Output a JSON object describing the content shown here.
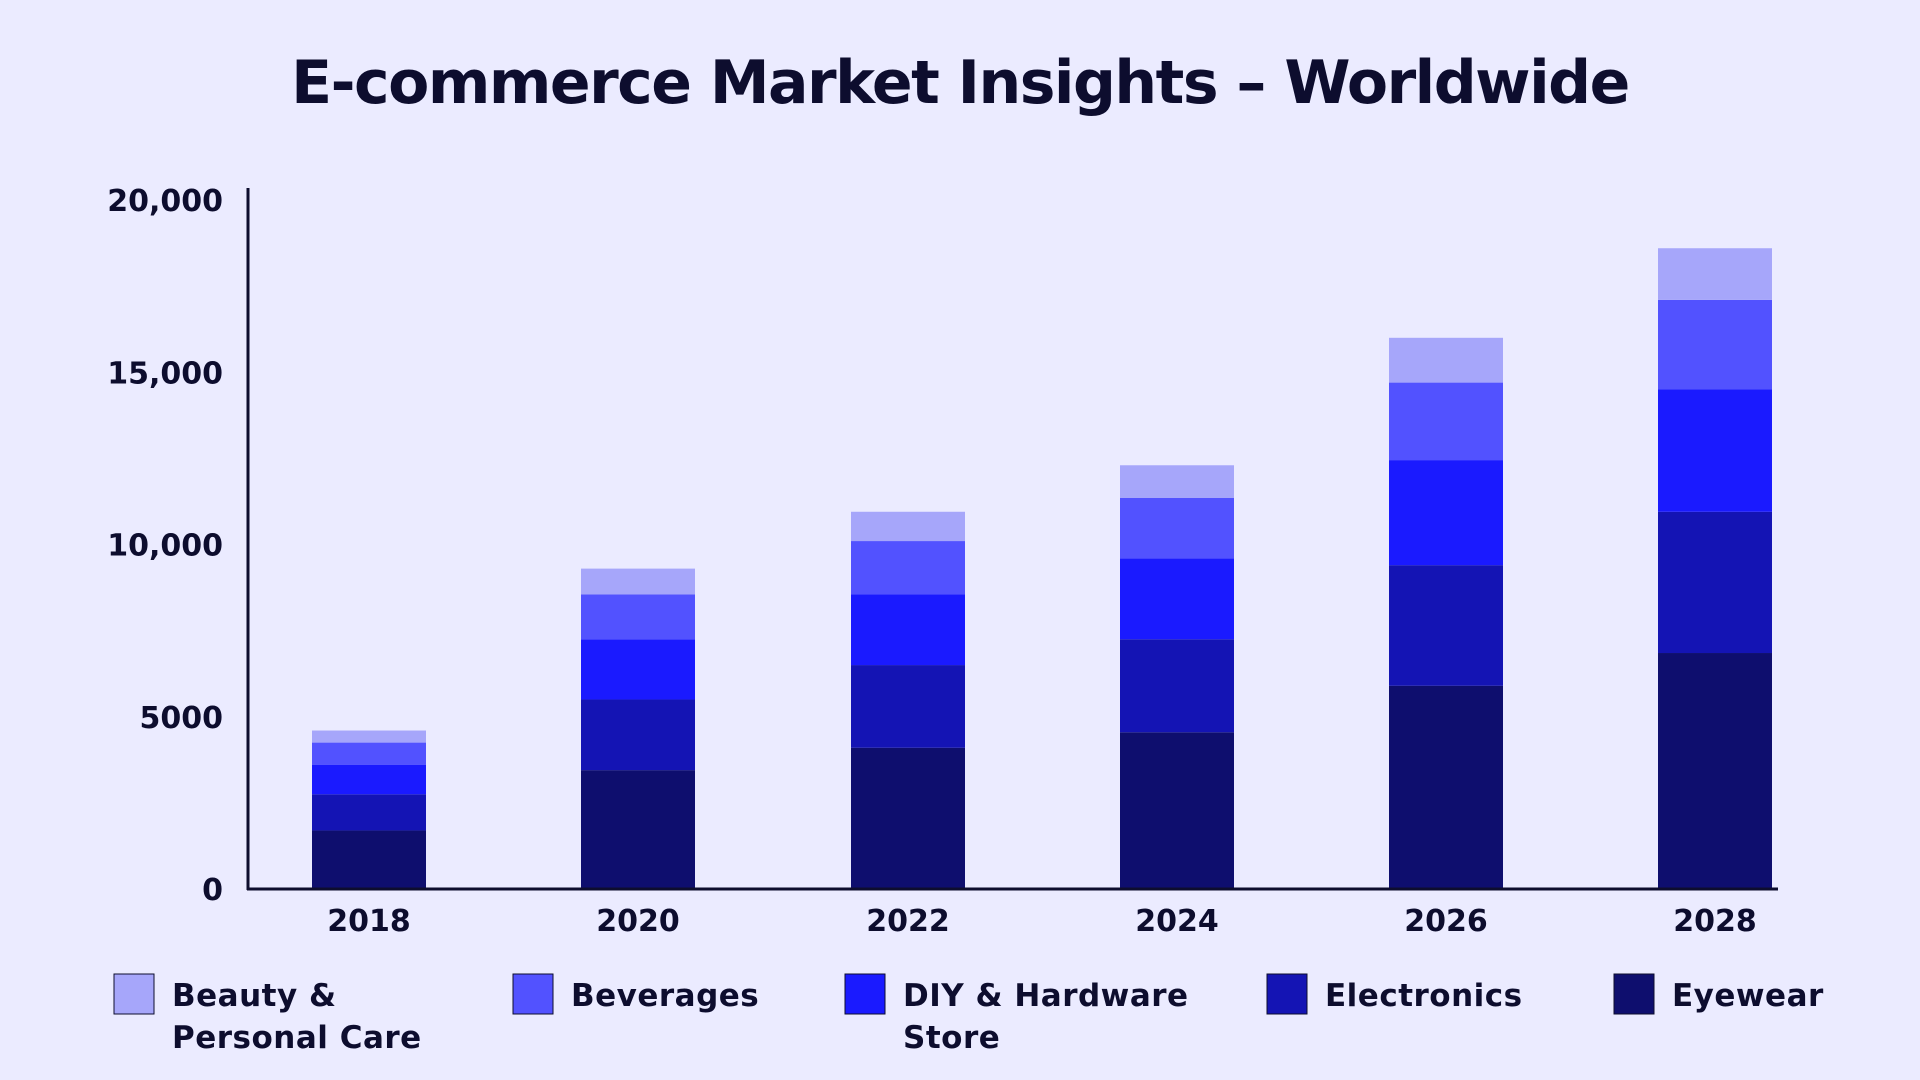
{
  "chart_data": {
    "type": "bar",
    "stacked": true,
    "title": "E-commerce Market Insights – Worldwide",
    "categories": [
      "2018",
      "2020",
      "2022",
      "2024",
      "2026",
      "2028"
    ],
    "ylim": [
      0,
      20000
    ],
    "yticks": [
      0,
      5000,
      10000,
      15000,
      20000
    ],
    "ytick_labels": [
      "0",
      "5000",
      "10,000",
      "15,000",
      "20,000"
    ],
    "grid": false,
    "legend_position": "bottom",
    "series": [
      {
        "name": "Eyewear",
        "color": "#0e0e6e",
        "values": [
          1700,
          3450,
          4100,
          4550,
          5900,
          6850
        ]
      },
      {
        "name": "Electronics",
        "color": "#1414b4",
        "values": [
          1050,
          2050,
          2400,
          2700,
          3500,
          4100
        ]
      },
      {
        "name": "DIY & Hardware Store",
        "color": "#1a1aff",
        "values": [
          850,
          1750,
          2050,
          2350,
          3050,
          3550
        ]
      },
      {
        "name": "Beverages",
        "color": "#5252ff",
        "values": [
          650,
          1300,
          1550,
          1750,
          2250,
          2600
        ]
      },
      {
        "name": "Beauty & Personal Care",
        "color": "#a6a6fa",
        "values": [
          350,
          750,
          850,
          950,
          1300,
          1500
        ]
      }
    ],
    "legend": [
      {
        "lines": [
          "Beauty &",
          "Personal Care"
        ],
        "color": "#a6a6fa"
      },
      {
        "lines": [
          "Beverages"
        ],
        "color": "#5252ff"
      },
      {
        "lines": [
          "DIY & Hardware",
          "Store"
        ],
        "color": "#1a1aff"
      },
      {
        "lines": [
          "Electronics"
        ],
        "color": "#1414b4"
      },
      {
        "lines": [
          "Eyewear"
        ],
        "color": "#0e0e6e"
      }
    ]
  }
}
